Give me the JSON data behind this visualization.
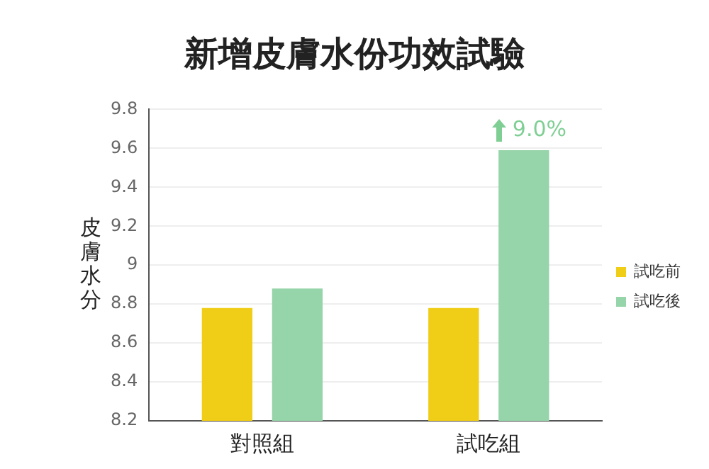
{
  "chart_data": {
    "type": "bar",
    "title": "新增皮膚水份功效試驗",
    "ylabel": "皮膚水分",
    "categories": [
      "對照組",
      "試吃組"
    ],
    "series": [
      {
        "name": "試吃前",
        "color": "#f0cd16",
        "values": [
          8.78,
          8.78
        ]
      },
      {
        "name": "試吃後",
        "color": "#96d4a9",
        "values": [
          8.88,
          9.59
        ]
      }
    ],
    "ylim": [
      8.2,
      9.8
    ],
    "yticks": [
      8.2,
      8.4,
      8.6,
      8.8,
      9,
      9.2,
      9.4,
      9.6,
      9.8
    ],
    "grid": "y",
    "legend": "right",
    "annotations": [
      "9.0%"
    ]
  }
}
